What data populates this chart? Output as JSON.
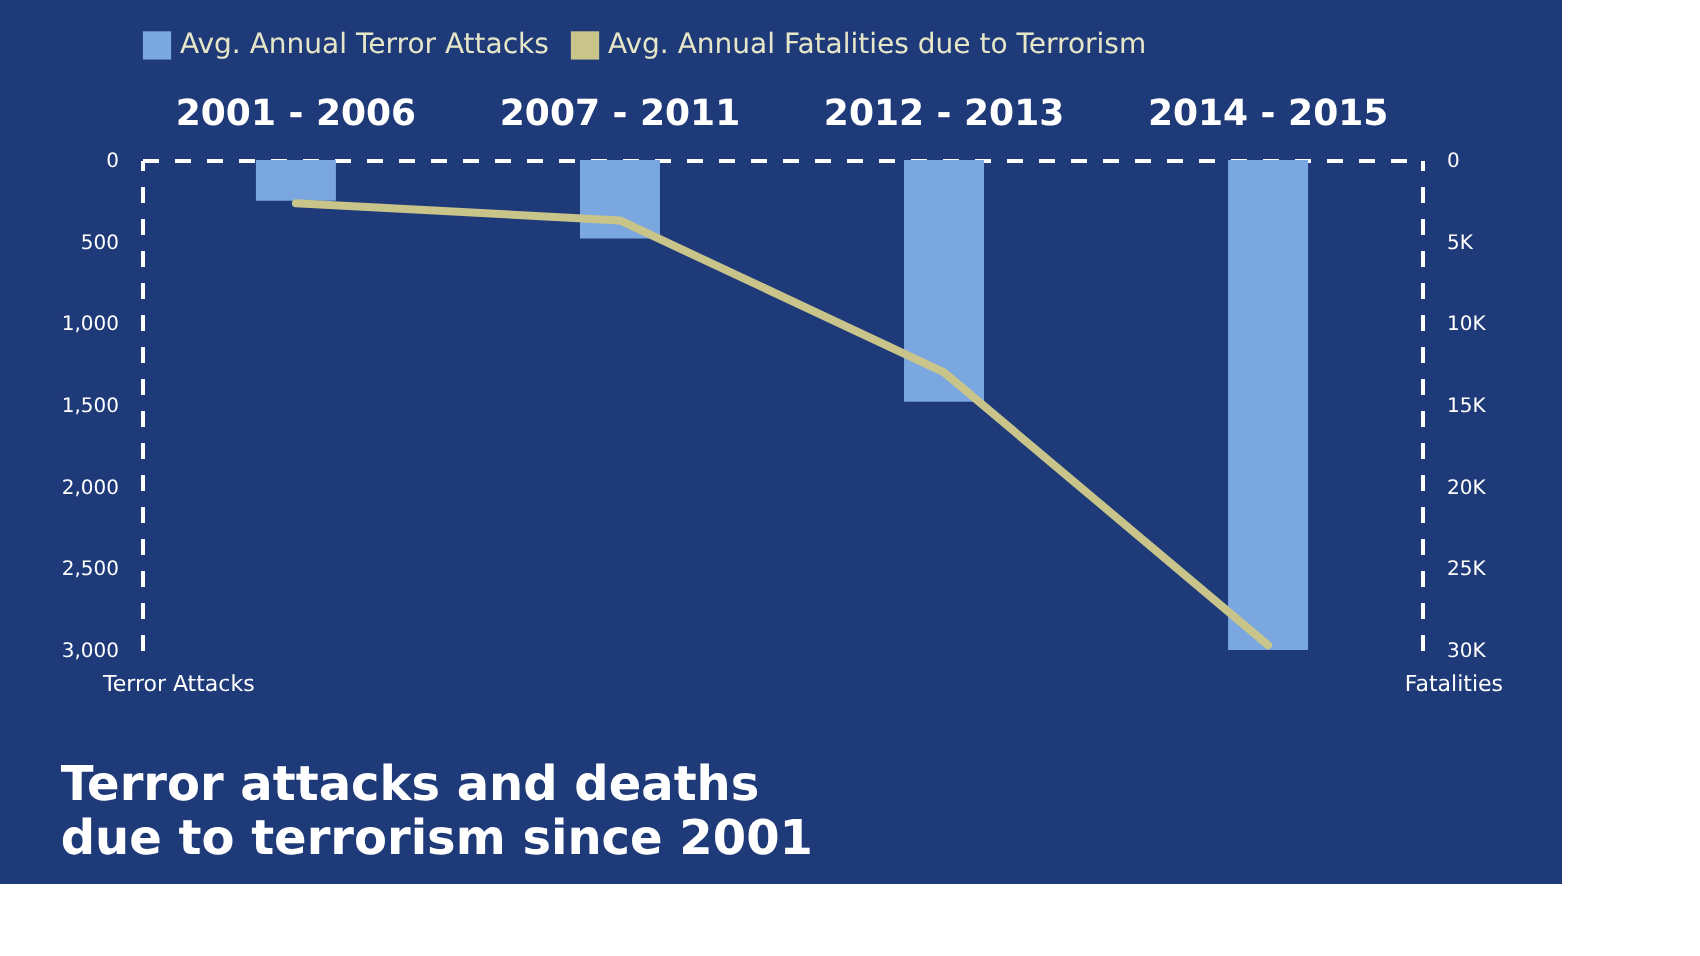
{
  "chart_data": {
    "type": "bar",
    "title": "Terror attacks and deaths",
    "subtitle": "due to terrorism since 2001",
    "categories": [
      "2001 - 2006",
      "2007 - 2011",
      "2012 - 2013",
      "2014 - 2015"
    ],
    "series": [
      {
        "name": "Avg. Annual Terror Attacks",
        "color": "#7aa7e0",
        "values": [
          250,
          480,
          1480,
          3000
        ]
      },
      {
        "name": "Avg. Annual Fatalities due to Terrorism",
        "type": "line",
        "axis": "y2",
        "color": "#c9c48a",
        "values": [
          2650,
          3700,
          13000,
          29700
        ]
      }
    ],
    "ylabel": "Terror Attacks",
    "y2label": "Fatalities",
    "ylim": [
      3000,
      0
    ],
    "yticks": [
      0,
      500,
      {
        "value": 1000,
        "label": "1,000"
      },
      {
        "value": 1500,
        "label": "1,500"
      },
      {
        "value": 2000,
        "label": "2,000"
      },
      {
        "value": 2500,
        "label": "2,500"
      },
      {
        "value": 3000,
        "label": "3,000"
      }
    ],
    "y2lim": [
      30000,
      0
    ],
    "y2ticks": [
      0,
      {
        "value": 5000,
        "label": "5K"
      },
      {
        "value": 10000,
        "label": "10K"
      },
      {
        "value": 15000,
        "label": "15K"
      },
      {
        "value": 20000,
        "label": "20K"
      },
      {
        "value": 25000,
        "label": "25K"
      },
      {
        "value": 30000,
        "label": "30K"
      }
    ],
    "grid": false,
    "legend": "top",
    "marker": "none",
    "line_style": "solid"
  }
}
